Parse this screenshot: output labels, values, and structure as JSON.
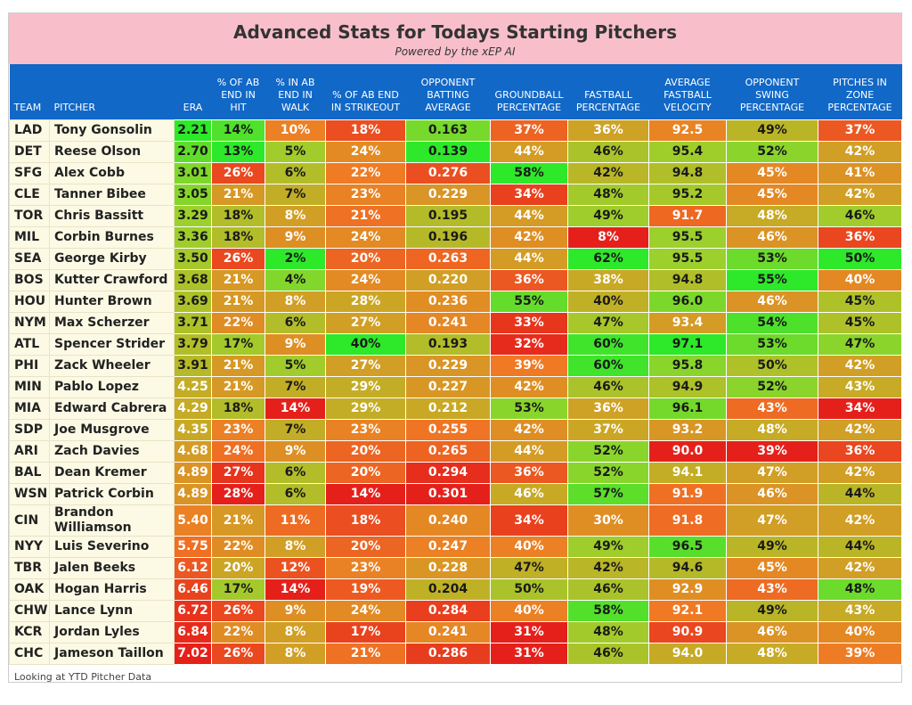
{
  "header": {
    "title": "Advanced Stats for Todays Starting Pitchers",
    "subtitle": "Powered by the xEP AI"
  },
  "table": {
    "columns": [
      "TEAM",
      "PITCHER",
      "ERA",
      "% OF AB END IN HIT",
      "% IN AB END IN WALK",
      "% OF AB END IN STRIKEOUT",
      "OPPONENT BATTING AVERAGE",
      "GROUNDBALL PERCENTAGE",
      "FASTBALL PERCENTAGE",
      "AVERAGE FASTBALL VELOCITY",
      "OPPONENT SWING PERCENTAGE",
      "PITCHES IN ZONE PERCENTAGE"
    ],
    "rows": [
      [
        "LAD",
        "Tony Gonsolin",
        "2.21",
        "14%",
        "10%",
        "18%",
        "0.163",
        "37%",
        "36%",
        "92.5",
        "49%",
        "37%"
      ],
      [
        "DET",
        "Reese Olson",
        "2.70",
        "13%",
        "5%",
        "24%",
        "0.139",
        "44%",
        "46%",
        "95.4",
        "52%",
        "42%"
      ],
      [
        "SFG",
        "Alex Cobb",
        "3.01",
        "26%",
        "6%",
        "22%",
        "0.276",
        "58%",
        "42%",
        "94.8",
        "45%",
        "41%"
      ],
      [
        "CLE",
        "Tanner Bibee",
        "3.05",
        "21%",
        "7%",
        "23%",
        "0.229",
        "34%",
        "48%",
        "95.2",
        "45%",
        "42%"
      ],
      [
        "TOR",
        "Chris Bassitt",
        "3.29",
        "18%",
        "8%",
        "21%",
        "0.195",
        "44%",
        "49%",
        "91.7",
        "48%",
        "46%"
      ],
      [
        "MIL",
        "Corbin Burnes",
        "3.36",
        "18%",
        "9%",
        "24%",
        "0.196",
        "42%",
        "8%",
        "95.5",
        "46%",
        "36%"
      ],
      [
        "SEA",
        "George Kirby",
        "3.50",
        "26%",
        "2%",
        "20%",
        "0.263",
        "44%",
        "62%",
        "95.5",
        "53%",
        "50%"
      ],
      [
        "BOS",
        "Kutter Crawford",
        "3.68",
        "21%",
        "4%",
        "24%",
        "0.220",
        "36%",
        "38%",
        "94.8",
        "55%",
        "40%"
      ],
      [
        "HOU",
        "Hunter Brown",
        "3.69",
        "21%",
        "8%",
        "28%",
        "0.236",
        "55%",
        "40%",
        "96.0",
        "46%",
        "45%"
      ],
      [
        "NYM",
        "Max Scherzer",
        "3.71",
        "22%",
        "6%",
        "27%",
        "0.241",
        "33%",
        "47%",
        "93.4",
        "54%",
        "45%"
      ],
      [
        "ATL",
        "Spencer Strider",
        "3.79",
        "17%",
        "9%",
        "40%",
        "0.193",
        "32%",
        "60%",
        "97.1",
        "53%",
        "47%"
      ],
      [
        "PHI",
        "Zack Wheeler",
        "3.91",
        "21%",
        "5%",
        "27%",
        "0.229",
        "39%",
        "60%",
        "95.8",
        "50%",
        "42%"
      ],
      [
        "MIN",
        "Pablo Lopez",
        "4.25",
        "21%",
        "7%",
        "29%",
        "0.227",
        "42%",
        "46%",
        "94.9",
        "52%",
        "43%"
      ],
      [
        "MIA",
        "Edward Cabrera",
        "4.29",
        "18%",
        "14%",
        "29%",
        "0.212",
        "53%",
        "36%",
        "96.1",
        "43%",
        "34%"
      ],
      [
        "SDP",
        "Joe Musgrove",
        "4.35",
        "23%",
        "7%",
        "23%",
        "0.255",
        "42%",
        "37%",
        "93.2",
        "48%",
        "42%"
      ],
      [
        "ARI",
        "Zach Davies",
        "4.68",
        "24%",
        "9%",
        "20%",
        "0.265",
        "44%",
        "52%",
        "90.0",
        "39%",
        "36%"
      ],
      [
        "BAL",
        "Dean Kremer",
        "4.89",
        "27%",
        "6%",
        "20%",
        "0.294",
        "36%",
        "52%",
        "94.1",
        "47%",
        "42%"
      ],
      [
        "WSN",
        "Patrick Corbin",
        "4.89",
        "28%",
        "6%",
        "14%",
        "0.301",
        "46%",
        "57%",
        "91.9",
        "46%",
        "44%"
      ],
      [
        "CIN",
        "Brandon Williamson",
        "5.40",
        "21%",
        "11%",
        "18%",
        "0.240",
        "34%",
        "30%",
        "91.8",
        "47%",
        "42%"
      ],
      [
        "NYY",
        "Luis Severino",
        "5.75",
        "22%",
        "8%",
        "20%",
        "0.247",
        "40%",
        "49%",
        "96.5",
        "49%",
        "44%"
      ],
      [
        "TBR",
        "Jalen Beeks",
        "6.12",
        "20%",
        "12%",
        "23%",
        "0.228",
        "47%",
        "42%",
        "94.6",
        "45%",
        "42%"
      ],
      [
        "OAK",
        "Hogan Harris",
        "6.46",
        "17%",
        "14%",
        "19%",
        "0.204",
        "50%",
        "46%",
        "92.9",
        "43%",
        "48%"
      ],
      [
        "CHW",
        "Lance Lynn",
        "6.72",
        "26%",
        "9%",
        "24%",
        "0.284",
        "40%",
        "58%",
        "92.1",
        "49%",
        "43%"
      ],
      [
        "KCR",
        "Jordan Lyles",
        "6.84",
        "22%",
        "8%",
        "17%",
        "0.241",
        "31%",
        "48%",
        "90.9",
        "46%",
        "40%"
      ],
      [
        "CHC",
        "Jameson Taillon",
        "7.02",
        "26%",
        "8%",
        "21%",
        "0.286",
        "31%",
        "46%",
        "94.0",
        "48%",
        "39%"
      ]
    ]
  },
  "footer": "Looking at YTD Pitcher Data"
}
